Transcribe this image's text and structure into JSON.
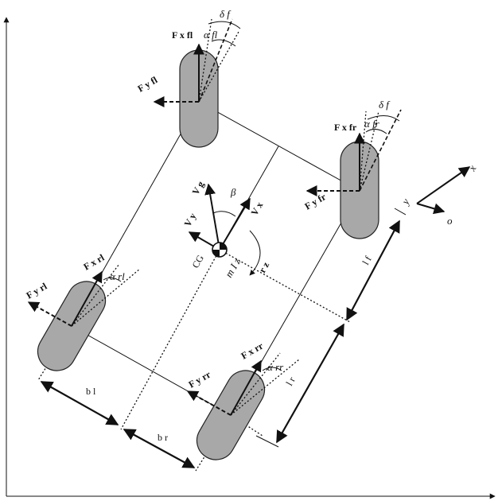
{
  "colors": {
    "tire": "#a8a8a8",
    "ink": "#111111",
    "background": "#ffffff"
  },
  "frame": {
    "x_axis_arrow": "arrow",
    "y_axis_arrow": "arrow"
  },
  "labels": {
    "fx_fl": "F x fl",
    "fy_fl": "F y fl",
    "alpha_fl": "α fl",
    "delta_fl": "δ f",
    "fx_fr": "F x fr",
    "fy_fr": "F y fr",
    "alpha_fr": "α fr",
    "delta_fr": "δ f",
    "fx_rl": "F x rl",
    "fy_rl": "F y rl",
    "alpha_rl": "α rl",
    "fx_rr": "F x rr",
    "fy_rr": "F y rr",
    "alpha_rr": "α rr",
    "v_g": "V g",
    "v_x": "V x",
    "v_y": "V y",
    "beta": "β",
    "cg": "CG",
    "m_iz": "m I z",
    "r_z": "r z",
    "l_f": "l f",
    "l_r": "l r",
    "b_l": "b l",
    "b_r": "b r",
    "frame_x": "x",
    "frame_y": "y",
    "frame_o": "o"
  }
}
